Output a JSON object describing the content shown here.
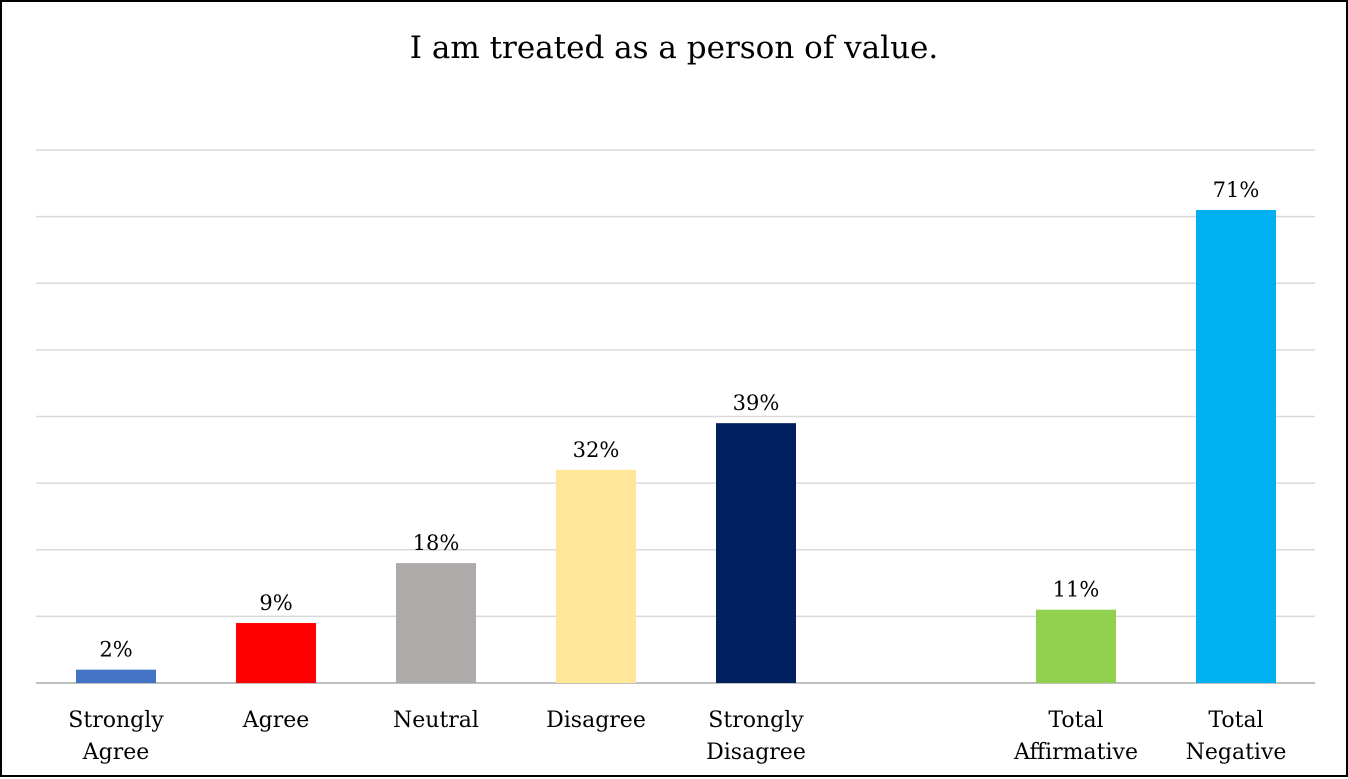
{
  "chart_data": {
    "type": "bar",
    "title": "I am treated as a person of value.",
    "categories": [
      [
        "Strongly",
        "Agree"
      ],
      [
        "Agree"
      ],
      [
        "Neutral"
      ],
      [
        "Disagree"
      ],
      [
        "Strongly",
        "Disagree"
      ],
      [
        "Total",
        "Affirmative"
      ],
      [
        "Total",
        "Negative"
      ]
    ],
    "values": [
      2,
      9,
      18,
      32,
      39,
      11,
      71
    ],
    "data_labels": [
      "2%",
      "9%",
      "18%",
      "32%",
      "39%",
      "11%",
      "71%"
    ],
    "colors": [
      "#4472c4",
      "#ff0000",
      "#aeaaaa",
      "#ffe699",
      "#002060",
      "#92d050",
      "#00b0f0"
    ],
    "ylim": [
      0,
      80
    ],
    "grid": true,
    "legend": "none",
    "xlabel": "",
    "ylabel": ""
  }
}
